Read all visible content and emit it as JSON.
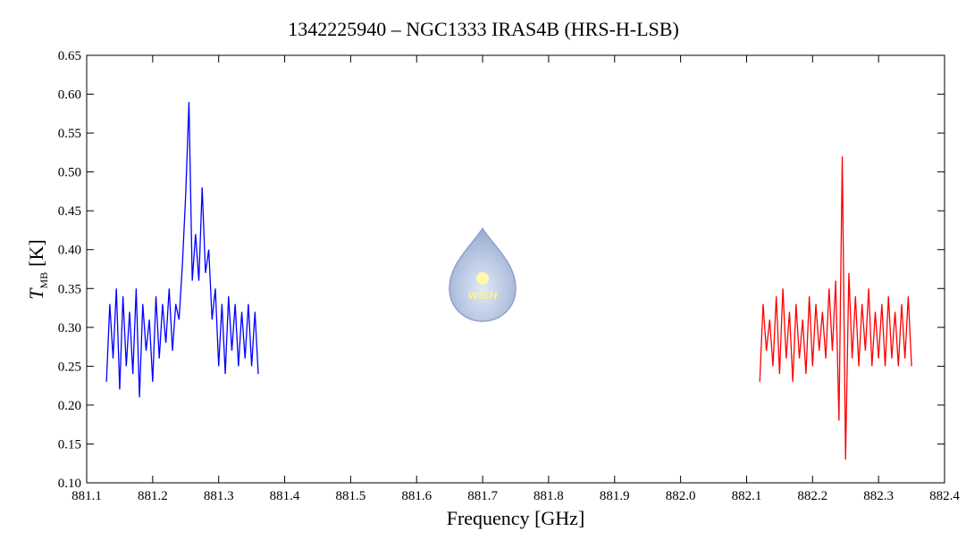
{
  "chart_data": {
    "type": "line",
    "title": "1342225940 – NGC1333 IRAS4B (HRS-H-LSB)",
    "xlabel": "Frequency [GHz]",
    "ylabel": {
      "symbol": "T",
      "subscript": "MB",
      "unit": "[K]"
    },
    "logo_text": "WISH",
    "xlim": [
      881.1,
      882.4
    ],
    "xticks": [
      881.1,
      881.2,
      881.3,
      881.4,
      881.5,
      881.6,
      881.7,
      881.8,
      881.9,
      {
        "value": 882,
        "label": "882.0"
      },
      882.1,
      882.2,
      882.3,
      882.4
    ],
    "ylim": [
      0.1,
      0.65
    ],
    "yticks": [
      {
        "value": 0.1,
        "label": "0.10"
      },
      0.15,
      {
        "value": 0.2,
        "label": "0.20"
      },
      0.25,
      {
        "value": 0.3,
        "label": "0.30"
      },
      0.35,
      {
        "value": 0.4,
        "label": "0.40"
      },
      0.45,
      {
        "value": 0.5,
        "label": "0.50"
      },
      0.55,
      {
        "value": 0.6,
        "label": "0.60"
      },
      0.65
    ],
    "series": [
      {
        "color": "#0000ff",
        "x": [
          881.13,
          881.135,
          881.14,
          881.145,
          881.15,
          881.155,
          881.16,
          881.165,
          881.17,
          881.175,
          881.18,
          881.185,
          881.19,
          881.195,
          881.2,
          881.205,
          881.21,
          881.215,
          881.22,
          881.225,
          881.23,
          881.235,
          881.24,
          881.245,
          881.25,
          881.255,
          881.26,
          881.265,
          881.27,
          881.275,
          881.28,
          881.285,
          881.29,
          881.295,
          881.3,
          881.305,
          881.31,
          881.315,
          881.32,
          881.325,
          881.33,
          881.335,
          881.34,
          881.345,
          881.35,
          881.355,
          881.36
        ],
        "values": [
          0.23,
          0.33,
          0.26,
          0.35,
          0.22,
          0.34,
          0.25,
          0.32,
          0.24,
          0.35,
          0.21,
          0.33,
          0.27,
          0.31,
          0.23,
          0.34,
          0.26,
          0.33,
          0.28,
          0.35,
          0.27,
          0.33,
          0.31,
          0.38,
          0.47,
          0.59,
          0.36,
          0.42,
          0.36,
          0.48,
          0.37,
          0.4,
          0.31,
          0.35,
          0.25,
          0.33,
          0.24,
          0.34,
          0.27,
          0.33,
          0.25,
          0.32,
          0.26,
          0.33,
          0.25,
          0.32,
          0.24
        ]
      },
      {
        "color": "#ff0000",
        "x": [
          882.12,
          882.125,
          882.13,
          882.135,
          882.14,
          882.145,
          882.15,
          882.155,
          882.16,
          882.165,
          882.17,
          882.175,
          882.18,
          882.185,
          882.19,
          882.195,
          882.2,
          882.205,
          882.21,
          882.215,
          882.22,
          882.225,
          882.23,
          882.235,
          882.24,
          882.245,
          882.25,
          882.255,
          882.26,
          882.265,
          882.27,
          882.275,
          882.28,
          882.285,
          882.29,
          882.295,
          882.3,
          882.305,
          882.31,
          882.315,
          882.32,
          882.325,
          882.33,
          882.335,
          882.34,
          882.345,
          882.35
        ],
        "values": [
          0.23,
          0.33,
          0.27,
          0.31,
          0.25,
          0.34,
          0.24,
          0.35,
          0.26,
          0.32,
          0.23,
          0.33,
          0.26,
          0.31,
          0.24,
          0.34,
          0.25,
          0.33,
          0.27,
          0.32,
          0.26,
          0.35,
          0.27,
          0.36,
          0.18,
          0.52,
          0.13,
          0.37,
          0.26,
          0.34,
          0.25,
          0.33,
          0.27,
          0.35,
          0.25,
          0.32,
          0.26,
          0.33,
          0.25,
          0.34,
          0.26,
          0.32,
          0.25,
          0.33,
          0.26,
          0.34,
          0.25
        ]
      }
    ]
  }
}
